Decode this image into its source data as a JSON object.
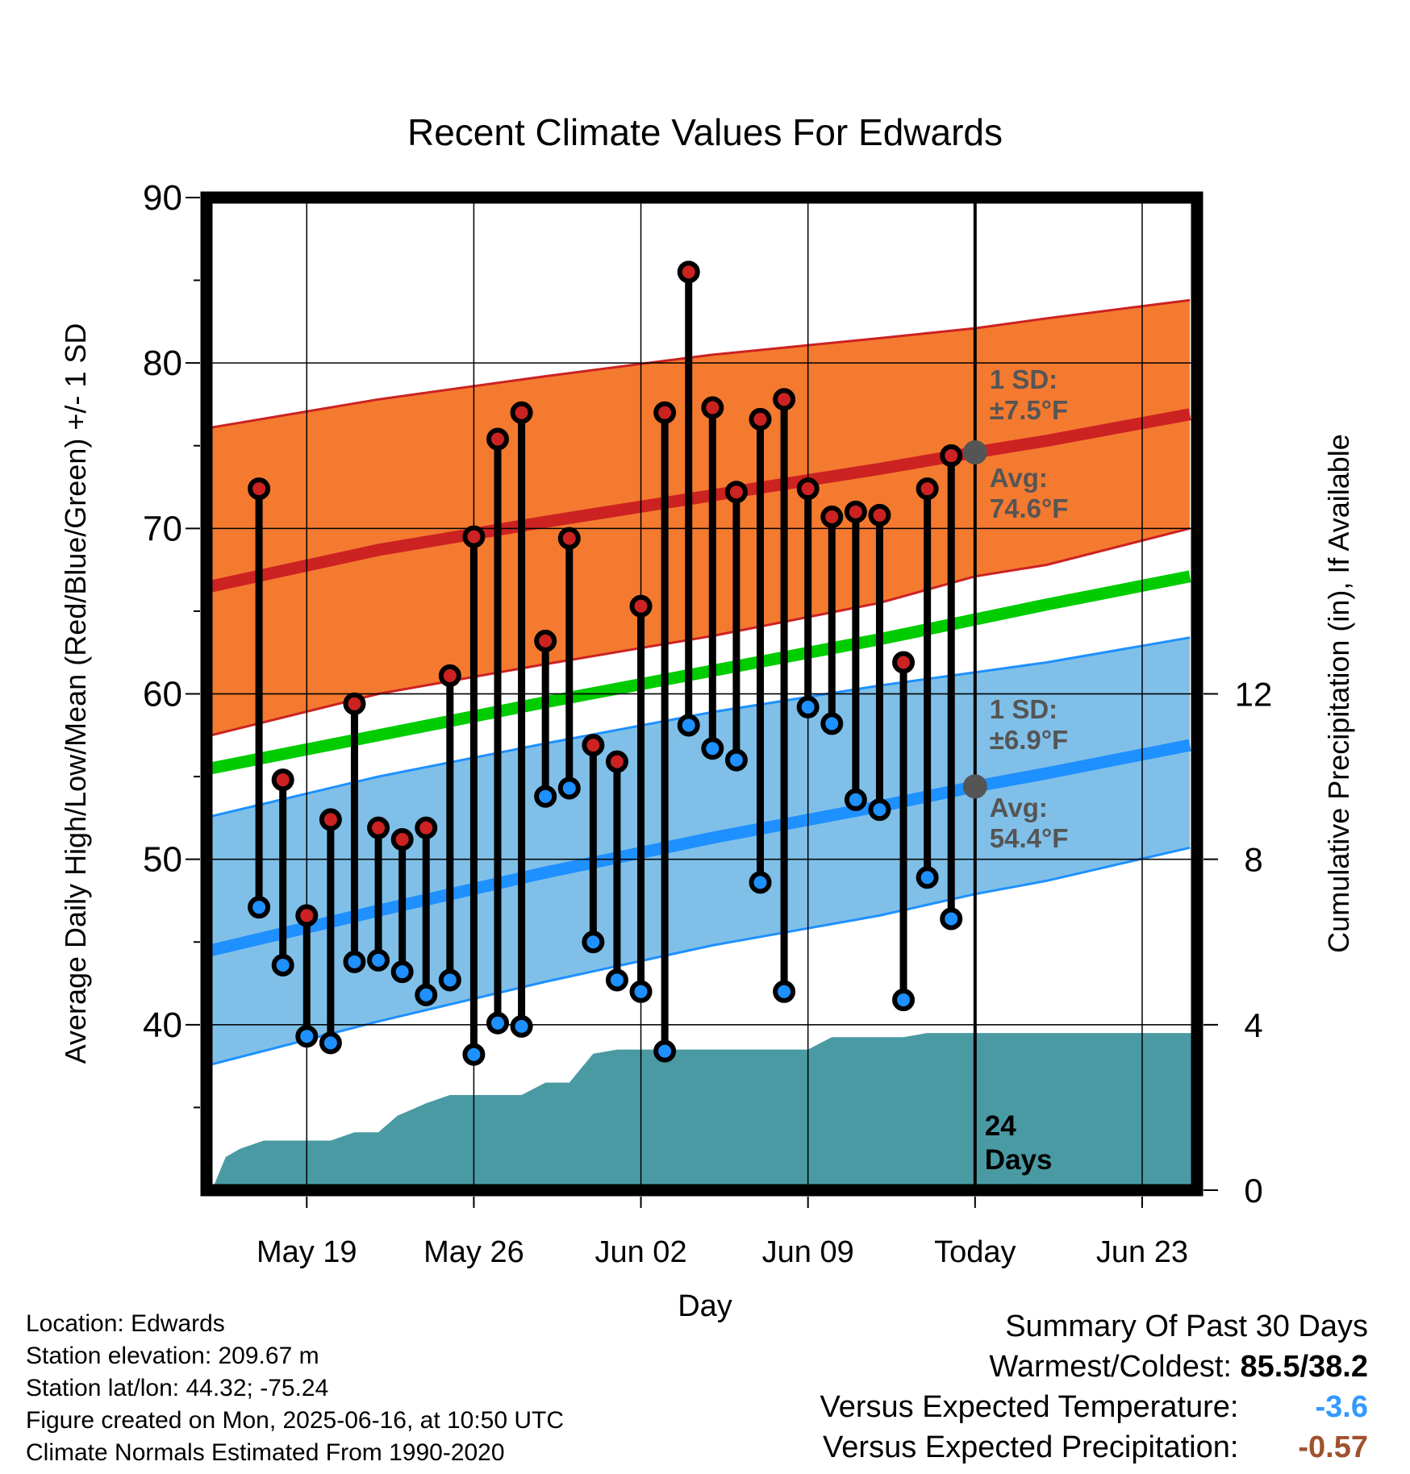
{
  "chart_data": {
    "type": "line",
    "title": "Recent Climate Values For Edwards",
    "xlabel": "Day",
    "ylabel": "Average Daily High/Low/Mean (Red/Blue/Green) +/- 1 SD",
    "y2label": "Cumulative Precipitation (in), If Available",
    "ylim": [
      30,
      90
    ],
    "y2lim": [
      0,
      24
    ],
    "y_ticks": [
      40,
      50,
      60,
      70,
      80,
      90
    ],
    "y2_ticks": [
      0,
      4,
      8,
      12
    ],
    "x_tick_labels": [
      "May 19",
      "May 26",
      "Jun 02",
      "Jun 09",
      "Today",
      "Jun 23"
    ],
    "x_range_days": [
      -32.2,
      9.3
    ],
    "x_tick_days": [
      -28,
      -21,
      -14,
      -7,
      0,
      7
    ],
    "grid": true,
    "colors": {
      "high": "#cc2222",
      "low": "#1e90ff",
      "mean": "#00cc00",
      "high_band": "#f47a30",
      "low_band": "#80c0e8",
      "precip": "#4a9aa4",
      "marker_avg": "#555555",
      "summary_temp": "#3399ff",
      "summary_precip": "#a0522d"
    },
    "normals": {
      "x": [
        -32,
        -25,
        -18,
        -11,
        -4,
        0,
        3,
        9
      ],
      "high_mean": [
        66.5,
        68.7,
        70.4,
        72.0,
        73.6,
        74.6,
        75.3,
        76.9
      ],
      "high_upper": [
        76.1,
        77.8,
        79.2,
        80.5,
        81.5,
        82.1,
        82.7,
        83.8
      ],
      "high_lower": [
        57.5,
        60.0,
        61.8,
        63.5,
        65.5,
        67.1,
        67.8,
        70.0
      ],
      "mean": [
        55.5,
        57.5,
        59.5,
        61.4,
        63.3,
        64.5,
        65.4,
        67.1
      ],
      "low_mean": [
        44.5,
        46.9,
        49.2,
        51.3,
        53.2,
        54.4,
        55.2,
        56.9
      ],
      "low_upper": [
        52.6,
        55.0,
        57.0,
        58.9,
        60.5,
        61.3,
        61.9,
        63.4
      ],
      "low_lower": [
        37.6,
        40.2,
        42.6,
        44.8,
        46.6,
        47.9,
        48.7,
        50.7
      ]
    },
    "daily": {
      "x": [
        -30,
        -29,
        -28,
        -27,
        -26,
        -25,
        -24,
        -23,
        -22,
        -21,
        -20,
        -19,
        -18,
        -17,
        -16,
        -15,
        -14,
        -13,
        -12,
        -11,
        -10,
        -9,
        -8,
        -7,
        -6,
        -5,
        -4,
        -3,
        -2,
        -1
      ],
      "high": [
        72.4,
        54.8,
        46.6,
        52.4,
        59.4,
        51.9,
        51.2,
        51.9,
        61.1,
        69.5,
        75.4,
        77.0,
        63.2,
        69.4,
        56.9,
        55.9,
        65.3,
        77.0,
        85.5,
        77.3,
        72.2,
        76.6,
        77.8,
        72.4,
        70.7,
        71.0,
        70.8,
        61.9,
        72.4,
        74.4
      ],
      "low": [
        47.1,
        43.6,
        39.3,
        38.9,
        43.8,
        43.9,
        43.2,
        41.8,
        42.7,
        38.2,
        40.1,
        39.9,
        53.8,
        54.3,
        45.0,
        42.7,
        42.0,
        38.4,
        58.1,
        56.7,
        56.0,
        48.6,
        42.0,
        59.2,
        58.2,
        53.6,
        53.0,
        41.5,
        48.9,
        46.4
      ]
    },
    "precip": {
      "x": [
        -31.9,
        -31.4,
        -30.8,
        -29.8,
        -29,
        -28,
        -27,
        -26,
        -25,
        -24.2,
        -23,
        -22,
        -21,
        -20,
        -19,
        -18,
        -17,
        -16,
        -15,
        -14,
        -13,
        -12,
        -11,
        -10,
        -9,
        -8,
        -7,
        -6,
        -5,
        -4,
        -3,
        -2,
        -1,
        0,
        9.3
      ],
      "cum": [
        0.1,
        0.8,
        1.0,
        1.2,
        1.2,
        1.2,
        1.2,
        1.4,
        1.4,
        1.8,
        2.1,
        2.3,
        2.3,
        2.3,
        2.3,
        2.6,
        2.6,
        3.3,
        3.4,
        3.4,
        3.4,
        3.4,
        3.4,
        3.4,
        3.4,
        3.4,
        3.4,
        3.7,
        3.7,
        3.7,
        3.7,
        3.8,
        3.8,
        3.8,
        3.8
      ]
    },
    "today_marker_label": [
      "24",
      "Days"
    ],
    "annotations": {
      "high_sd": [
        "1 SD:",
        "±7.5°F"
      ],
      "high_avg": [
        "Avg:",
        "74.6°F"
      ],
      "low_sd": [
        "1 SD:",
        "±6.9°F"
      ],
      "low_avg": [
        "Avg:",
        "54.4°F"
      ]
    }
  },
  "info": {
    "location": "Location: Edwards",
    "elevation": "Station elevation: 209.67 m",
    "latlon": "Station lat/lon: 44.32; -75.24",
    "created": "Figure created on Mon, 2025-06-16, at 10:50 UTC",
    "normals": "Climate Normals Estimated From 1990-2020"
  },
  "summary": {
    "title": "Summary Of Past 30 Days",
    "warm_cold_label": "Warmest/Coldest:",
    "warm_cold_value": "85.5/38.2",
    "temp_label": "Versus Expected Temperature:",
    "temp_value": "-3.6",
    "precip_label": "Versus Expected Precipitation:",
    "precip_value": "-0.57"
  }
}
